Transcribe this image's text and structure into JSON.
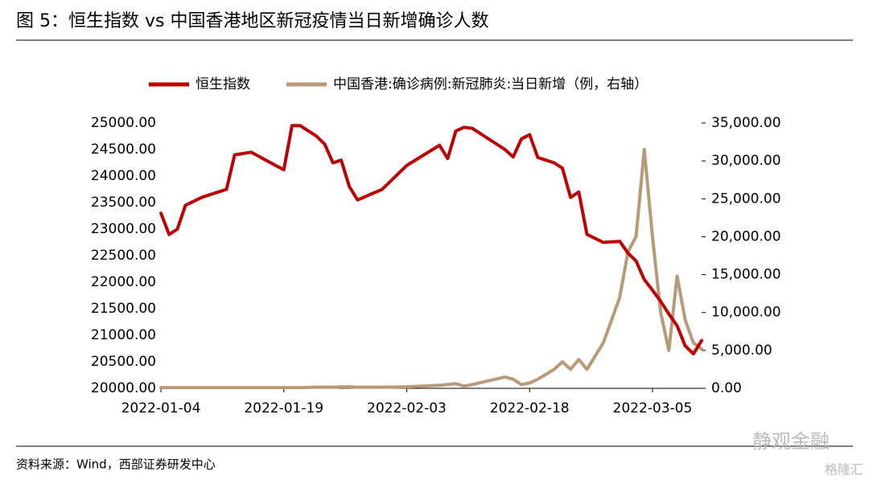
{
  "chart_data": {
    "type": "line",
    "title": "图 5：恒生指数 vs 中国香港地区新冠疫情当日新增确诊人数",
    "source": "资料来源：Wind，西部证券研发中心",
    "watermarks": [
      "静观金融",
      "格隆汇"
    ],
    "x": [
      "2022-01-04",
      "2022-01-05",
      "2022-01-06",
      "2022-01-07",
      "2022-01-09",
      "2022-01-11",
      "2022-01-12",
      "2022-01-13",
      "2022-01-15",
      "2022-01-18",
      "2022-01-19",
      "2022-01-20",
      "2022-01-21",
      "2022-01-23",
      "2022-01-24",
      "2022-01-25",
      "2022-01-26",
      "2022-01-27",
      "2022-01-28",
      "2022-01-31",
      "2022-02-03",
      "2022-02-07",
      "2022-02-08",
      "2022-02-09",
      "2022-02-10",
      "2022-02-11",
      "2022-02-15",
      "2022-02-16",
      "2022-02-17",
      "2022-02-18",
      "2022-02-19",
      "2022-02-21",
      "2022-02-22",
      "2022-02-23",
      "2022-02-24",
      "2022-02-25",
      "2022-02-27",
      "2022-03-01",
      "2022-03-02",
      "2022-03-03",
      "2022-03-04",
      "2022-03-05",
      "2022-03-06",
      "2022-03-07",
      "2022-03-08",
      "2022-03-09",
      "2022-03-10",
      "2022-03-11"
    ],
    "series": [
      {
        "name": "恒生指数",
        "color": "#c00000",
        "axis": "y",
        "values": [
          23300,
          22900,
          23000,
          23450,
          23600,
          23700,
          23750,
          24400,
          24450,
          24200,
          24120,
          24950,
          24950,
          24750,
          24600,
          24250,
          24300,
          23800,
          23550,
          23750,
          24200,
          24580,
          24330,
          24850,
          24920,
          24900,
          24500,
          24360,
          24700,
          24780,
          24350,
          24250,
          24150,
          23600,
          23700,
          22900,
          22750,
          22770,
          22550,
          22400,
          22050,
          21850,
          21640,
          21400,
          21180,
          20800,
          20650,
          20900
        ]
      },
      {
        "name": "中国香港:确诊病例:新冠肺炎:当日新增（例，右轴）",
        "color": "#b89a78",
        "axis": "y2",
        "values": [
          100,
          100,
          100,
          100,
          100,
          100,
          100,
          100,
          100,
          100,
          100,
          100,
          100,
          150,
          150,
          150,
          200,
          200,
          150,
          150,
          200,
          400,
          500,
          600,
          300,
          500,
          1500,
          1200,
          500,
          700,
          1200,
          2500,
          3500,
          2500,
          3800,
          2500,
          6000,
          12000,
          18000,
          20000,
          31500,
          20000,
          10000,
          5000,
          14800,
          9000,
          6000,
          5200
        ]
      }
    ],
    "xlim": [
      "2022-01-04",
      "2022-03-11"
    ],
    "xticks": [
      "2022-01-04",
      "2022-01-19",
      "2022-02-03",
      "2022-02-18",
      "2022-03-05"
    ],
    "ylim": [
      20000,
      25000
    ],
    "yticks": [
      {
        "value": 20000,
        "label": "20000.00"
      },
      {
        "value": 20500,
        "label": "20500.00"
      },
      {
        "value": 21000,
        "label": "21000.00"
      },
      {
        "value": 21500,
        "label": "21500.00"
      },
      {
        "value": 22000,
        "label": "22000.00"
      },
      {
        "value": 22500,
        "label": "22500.00"
      },
      {
        "value": 23000,
        "label": "23000.00"
      },
      {
        "value": 23500,
        "label": "23500.00"
      },
      {
        "value": 24000,
        "label": "24000.00"
      },
      {
        "value": 24500,
        "label": "24500.00"
      },
      {
        "value": 25000,
        "label": "25000.00"
      }
    ],
    "y2lim": [
      0,
      35000
    ],
    "y2ticks": [
      {
        "value": 0,
        "label": "0.00"
      },
      {
        "value": 5000,
        "label": "5,000.00"
      },
      {
        "value": 10000,
        "label": "10,000.00"
      },
      {
        "value": 15000,
        "label": "15,000.00"
      },
      {
        "value": 20000,
        "label": "20,000.00"
      },
      {
        "value": 25000,
        "label": "25,000.00"
      },
      {
        "value": 30000,
        "label": "30,000.00"
      },
      {
        "value": 35000,
        "label": "35,000.00"
      }
    ]
  }
}
